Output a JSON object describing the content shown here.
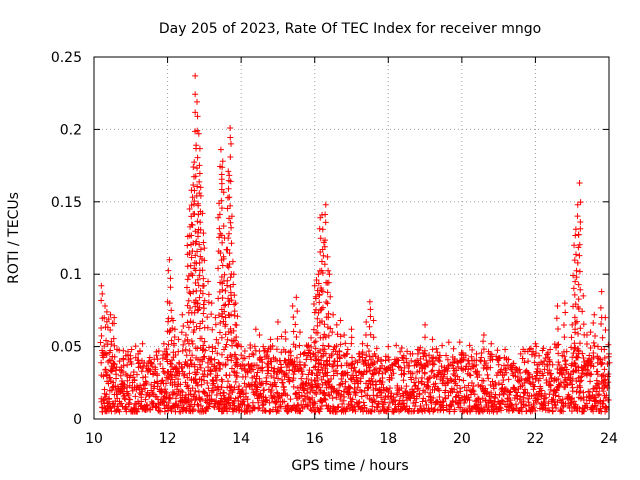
{
  "chart_data": {
    "type": "scatter",
    "title": "Day 205 of 2023, Rate Of TEC Index for receiver mngo",
    "xlabel": "GPS time / hours",
    "ylabel": "ROTI / TECUs",
    "xlim": [
      10,
      24
    ],
    "ylim": [
      0,
      0.25
    ],
    "xticks": [
      10,
      12,
      14,
      16,
      18,
      20,
      22,
      24
    ],
    "xtick_labels": [
      "10",
      "12",
      "14",
      "16",
      "18",
      "20",
      "22",
      "24"
    ],
    "yticks": [
      0,
      0.05,
      0.1,
      0.15,
      0.2,
      0.25
    ],
    "ytick_labels": [
      "0",
      "0.05",
      "0.1",
      "0.15",
      "0.2",
      "0.25"
    ],
    "grid": true,
    "marker": "+",
    "series": [
      {
        "name": "ROTI",
        "color": "#ff0000",
        "x": [
          10.2,
          10.3,
          10.35,
          10.4,
          10.45,
          10.5,
          10.55,
          10.6,
          10.7,
          10.8,
          10.9,
          11.0,
          11.1,
          11.2,
          11.3,
          11.4,
          11.5,
          11.6,
          11.7,
          11.8,
          11.9,
          12.0,
          12.05,
          12.1,
          12.15,
          12.2,
          12.3,
          12.4,
          12.5,
          12.55,
          12.6,
          12.65,
          12.7,
          12.75,
          12.8,
          12.85,
          12.9,
          12.95,
          13.0,
          13.1,
          13.2,
          13.3,
          13.4,
          13.45,
          13.5,
          13.55,
          13.6,
          13.65,
          13.7,
          13.75,
          13.8,
          13.85,
          13.9,
          14.0,
          14.1,
          14.2,
          14.3,
          14.4,
          14.5,
          14.6,
          14.7,
          14.8,
          14.9,
          15.0,
          15.1,
          15.2,
          15.3,
          15.4,
          15.5,
          15.6,
          15.7,
          15.8,
          15.9,
          16.0,
          16.05,
          16.1,
          16.15,
          16.2,
          16.25,
          16.3,
          16.35,
          16.4,
          16.5,
          16.6,
          16.7,
          16.8,
          16.9,
          17.0,
          17.1,
          17.2,
          17.3,
          17.4,
          17.5,
          17.6,
          17.8,
          18.0,
          18.2,
          18.4,
          18.6,
          18.8,
          19.0,
          19.2,
          19.4,
          19.6,
          19.8,
          20.0,
          20.2,
          20.4,
          20.6,
          20.8,
          21.0,
          21.2,
          21.4,
          21.6,
          21.8,
          22.0,
          22.2,
          22.4,
          22.6,
          22.8,
          23.0,
          23.05,
          23.1,
          23.15,
          23.2,
          23.3,
          23.4,
          23.5,
          23.6,
          23.7,
          23.8,
          23.9,
          24.0
        ],
        "y": [
          0.092,
          0.078,
          0.074,
          0.069,
          0.072,
          0.066,
          0.07,
          0.028,
          0.034,
          0.041,
          0.022,
          0.03,
          0.027,
          0.045,
          0.033,
          0.029,
          0.04,
          0.036,
          0.044,
          0.038,
          0.052,
          0.081,
          0.11,
          0.075,
          0.068,
          0.062,
          0.055,
          0.072,
          0.058,
          0.126,
          0.145,
          0.158,
          0.174,
          0.237,
          0.219,
          0.197,
          0.16,
          0.142,
          0.118,
          0.095,
          0.08,
          0.07,
          0.149,
          0.186,
          0.178,
          0.125,
          0.117,
          0.171,
          0.201,
          0.14,
          0.1,
          0.08,
          0.071,
          0.05,
          0.042,
          0.038,
          0.045,
          0.062,
          0.058,
          0.05,
          0.043,
          0.055,
          0.035,
          0.067,
          0.057,
          0.06,
          0.046,
          0.078,
          0.084,
          0.06,
          0.045,
          0.05,
          0.056,
          0.092,
          0.096,
          0.1,
          0.139,
          0.141,
          0.122,
          0.148,
          0.112,
          0.1,
          0.072,
          0.065,
          0.068,
          0.058,
          0.048,
          0.062,
          0.04,
          0.045,
          0.052,
          0.067,
          0.081,
          0.068,
          0.04,
          0.05,
          0.038,
          0.042,
          0.045,
          0.048,
          0.065,
          0.055,
          0.04,
          0.035,
          0.04,
          0.044,
          0.038,
          0.045,
          0.058,
          0.052,
          0.042,
          0.035,
          0.03,
          0.045,
          0.04,
          0.052,
          0.038,
          0.048,
          0.078,
          0.08,
          0.065,
          0.12,
          0.131,
          0.148,
          0.163,
          0.085,
          0.058,
          0.06,
          0.072,
          0.05,
          0.088,
          0.07,
          0.045
        ]
      }
    ],
    "baseline_band": {
      "description": "dense cloud of ROTI values across the full time range",
      "ymin": 0.005,
      "ymax": 0.04
    }
  }
}
